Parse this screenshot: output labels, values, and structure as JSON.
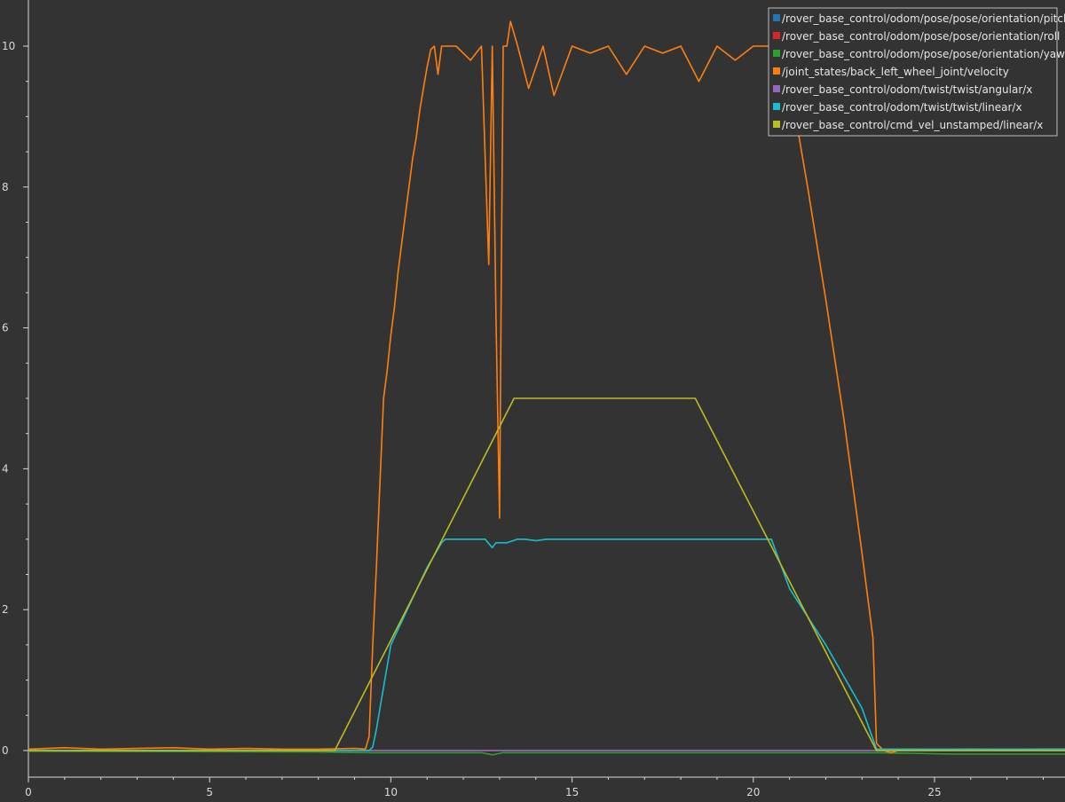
{
  "chart_data": {
    "type": "line",
    "title": "",
    "xlabel": "",
    "ylabel": "",
    "xlim": [
      0,
      28.6
    ],
    "ylim": [
      -0.3,
      10.65
    ],
    "x_ticks": [
      0,
      5,
      10,
      15,
      20,
      25
    ],
    "x_tick_labels": [
      "0",
      "5",
      "10",
      "15",
      "20",
      "25"
    ],
    "y_ticks": [
      0,
      2,
      4,
      6,
      8,
      10
    ],
    "y_tick_labels": [
      "0",
      "2",
      "4",
      "6",
      "8",
      "10"
    ],
    "grid": false,
    "legend": "top-right",
    "series": [
      {
        "name": "/rover_base_control/odom/pose/pose/orientation/pitch",
        "color": "#1f77b4",
        "x": [
          0,
          28.6
        ],
        "y": [
          0,
          0
        ]
      },
      {
        "name": "/rover_base_control/odom/pose/pose/orientation/roll",
        "color": "#d62728",
        "x": [
          0,
          28.6
        ],
        "y": [
          0,
          0
        ]
      },
      {
        "name": "/rover_base_control/odom/pose/pose/orientation/yaw",
        "color": "#2ca02c",
        "x": [
          0,
          8,
          9.5,
          12.5,
          12.8,
          13.1,
          23.5,
          25.5,
          28.6
        ],
        "y": [
          -0.01,
          -0.02,
          -0.03,
          -0.03,
          -0.06,
          -0.03,
          -0.03,
          -0.05,
          -0.05
        ]
      },
      {
        "name": "/joint_states/back_left_wheel_joint/velocity",
        "color": "#ff7f0e",
        "x": [
          0,
          1,
          2,
          3,
          4,
          5,
          6,
          7,
          8,
          9,
          9.3,
          9.4,
          9.5,
          9.6,
          9.7,
          9.8,
          9.9,
          10.0,
          10.1,
          10.2,
          10.3,
          10.4,
          10.5,
          10.6,
          10.7,
          10.8,
          10.9,
          11.0,
          11.1,
          11.2,
          11.3,
          11.4,
          11.5,
          11.8,
          12.2,
          12.5,
          12.7,
          12.8,
          12.9,
          13.0,
          13.05,
          13.1,
          13.2,
          13.3,
          13.5,
          13.8,
          14.2,
          14.5,
          15.0,
          15.5,
          16.0,
          16.5,
          17.0,
          17.5,
          18.0,
          18.5,
          19.0,
          19.5,
          20.0,
          20.5,
          21.0,
          21.5,
          22.0,
          22.5,
          23.0,
          23.3,
          23.4,
          23.6,
          23.8,
          24.0,
          24.2,
          25.0,
          26.0,
          27.0,
          28.0,
          28.6
        ],
        "y": [
          0.02,
          0.04,
          0.02,
          0.03,
          0.04,
          0.02,
          0.03,
          0.02,
          0.02,
          0.03,
          0.02,
          0.2,
          1.5,
          2.6,
          3.8,
          5.0,
          5.4,
          5.9,
          6.3,
          6.8,
          7.2,
          7.6,
          8.0,
          8.4,
          8.7,
          9.1,
          9.4,
          9.7,
          9.95,
          10.0,
          9.6,
          10.0,
          10.0,
          10.0,
          9.8,
          10.0,
          6.9,
          10.0,
          6.2,
          3.3,
          7.0,
          10.0,
          10.0,
          10.35,
          10.0,
          9.4,
          10.0,
          9.3,
          10.0,
          9.9,
          10.0,
          9.6,
          10.0,
          9.9,
          10.0,
          9.5,
          10.0,
          9.8,
          10.0,
          10.0,
          9.5,
          8.0,
          6.4,
          4.7,
          2.8,
          1.6,
          0.1,
          0.0,
          -0.03,
          0.0,
          0.02,
          0.01,
          0.02,
          0.01,
          0.02,
          0.02
        ]
      },
      {
        "name": "/rover_base_control/odom/twist/twist/angular/x",
        "color": "#9467bd",
        "x": [
          0,
          28.6
        ],
        "y": [
          0.0,
          0.0
        ]
      },
      {
        "name": "/rover_base_control/odom/twist/twist/linear/x",
        "color": "#17becf",
        "x": [
          0,
          9.0,
          9.4,
          9.5,
          9.6,
          9.7,
          9.8,
          9.9,
          10.0,
          10.5,
          11.0,
          11.4,
          11.5,
          12.2,
          12.6,
          12.8,
          12.9,
          13.2,
          13.5,
          13.7,
          14.0,
          14.3,
          15.0,
          20.0,
          20.5,
          21.0,
          22.0,
          23.0,
          23.4,
          28.6
        ],
        "y": [
          0.0,
          0.0,
          0.0,
          0.05,
          0.3,
          0.6,
          0.9,
          1.2,
          1.5,
          2.05,
          2.6,
          2.95,
          3.0,
          3.0,
          3.0,
          2.88,
          2.95,
          2.95,
          3.0,
          3.0,
          2.98,
          3.0,
          3.0,
          3.0,
          3.0,
          2.3,
          1.5,
          0.6,
          0.02,
          0.02
        ]
      },
      {
        "name": "/rover_base_control/cmd_vel_unstamped/linear/x",
        "color": "#bcbd22",
        "x": [
          0,
          8.45,
          13.4,
          18.4,
          23.4,
          28.6
        ],
        "y": [
          0.0,
          0.0,
          5.0,
          5.0,
          0.0,
          0.0
        ]
      }
    ]
  }
}
